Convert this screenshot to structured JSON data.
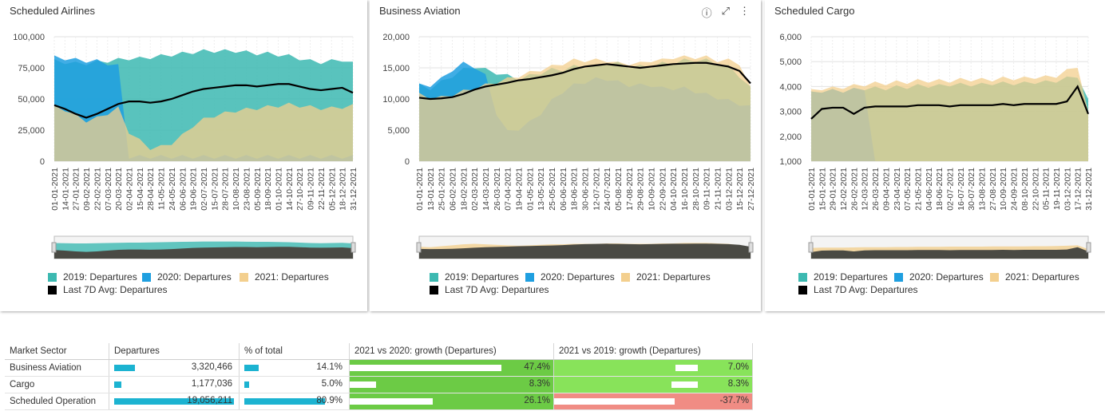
{
  "panels": [
    {
      "title": "Scheduled Airlines"
    },
    {
      "title": "Business Aviation"
    },
    {
      "title": "Scheduled Cargo"
    }
  ],
  "toolbar": {
    "info_icon": "info-icon",
    "expand_icon": "expand-icon",
    "menu_icon": "kebab-menu-icon"
  },
  "legend": {
    "y2019": "2019: Departures",
    "y2020": "2020: Departures",
    "y2021": "2021: Departures",
    "avg": "Last 7D Avg: Departures"
  },
  "colors": {
    "y2019": "#3cb9b1",
    "y2020": "#1f9fe0",
    "y2021": "#f3cf8e",
    "avg": "#000000",
    "bar": "#1cb3d1",
    "green_light": "#88e35a",
    "green_dark": "#6ccb45",
    "red": "#f08c84"
  },
  "chart_data": [
    {
      "type": "area",
      "title": "Scheduled Airlines",
      "ylim": [
        0,
        100000
      ],
      "y_ticks": [
        "0",
        "25,000",
        "50,000",
        "75,000",
        "100,000"
      ],
      "x_ticks": [
        "01-01-2021",
        "14-01-2021",
        "27-01-2021",
        "09-02-2021",
        "22-02-2021",
        "07-03-2021",
        "20-03-2021",
        "02-04-2021",
        "15-04-2021",
        "28-04-2021",
        "11-05-2021",
        "24-05-2021",
        "06-06-2021",
        "19-06-2021",
        "02-07-2021",
        "15-07-2021",
        "28-07-2021",
        "10-08-2021",
        "23-08-2021",
        "05-09-2021",
        "18-09-2021",
        "01-10-2021",
        "14-10-2021",
        "27-10-2021",
        "09-11-2021",
        "22-11-2021",
        "05-12-2021",
        "18-12-2021",
        "31-12-2021"
      ],
      "series": [
        {
          "name": "2019: Departures",
          "values": [
            82000,
            81000,
            80000,
            80000,
            81000,
            82000,
            83000,
            84000,
            84000,
            85000,
            86000,
            87000,
            88000,
            89000,
            90000,
            90000,
            90000,
            90000,
            89000,
            88000,
            88000,
            87000,
            86000,
            84000,
            82000,
            81000,
            82000,
            83000,
            80000
          ]
        },
        {
          "name": "2020: Departures",
          "values": [
            85000,
            84000,
            83000,
            82000,
            82000,
            80000,
            78000,
            5000,
            5000,
            5000,
            5000,
            5000,
            5000,
            5000,
            5000,
            5000,
            5000,
            5000,
            5000,
            5000,
            5000,
            5000,
            5000,
            5000,
            5000,
            5000,
            5000,
            5000,
            5000
          ]
        },
        {
          "name": "2021: Departures",
          "values": [
            45000,
            43000,
            38000,
            34000,
            36000,
            40000,
            44000,
            25000,
            18000,
            12000,
            13000,
            16000,
            22000,
            30000,
            35000,
            38000,
            40000,
            42000,
            43000,
            44000,
            45000,
            46000,
            47000,
            46000,
            45000,
            44000,
            44000,
            45000,
            46000
          ]
        },
        {
          "name": "Last 7D Avg: Departures",
          "values": [
            45000,
            42000,
            38000,
            35000,
            38000,
            42000,
            46000,
            48000,
            48000,
            47000,
            48000,
            50000,
            53000,
            56000,
            58000,
            59000,
            60000,
            61000,
            61000,
            60000,
            61000,
            62000,
            62000,
            60000,
            58000,
            57000,
            58000,
            59000,
            55000
          ]
        }
      ]
    },
    {
      "type": "area",
      "title": "Business Aviation",
      "ylim": [
        0,
        20000
      ],
      "y_ticks": [
        "0",
        "5,000",
        "10,000",
        "15,000",
        "20,000"
      ],
      "x_ticks": [
        "01-01-2021",
        "13-01-2021",
        "25-01-2021",
        "06-02-2021",
        "18-02-2021",
        "02-03-2021",
        "14-03-2021",
        "26-03-2021",
        "07-04-2021",
        "19-04-2021",
        "01-05-2021",
        "13-05-2021",
        "25-05-2021",
        "06-06-2021",
        "18-06-2021",
        "30-06-2021",
        "12-07-2021",
        "24-07-2021",
        "05-08-2021",
        "17-08-2021",
        "29-08-2021",
        "10-09-2021",
        "22-09-2021",
        "04-10-2021",
        "16-10-2021",
        "28-10-2021",
        "09-11-2021",
        "21-11-2021",
        "03-12-2021",
        "15-12-2021",
        "27-12-2021"
      ],
      "series": [
        {
          "name": "2019: Departures",
          "values": [
            12500,
            12000,
            13000,
            14000,
            15000,
            15500,
            15000,
            14500,
            14000,
            13500,
            14000,
            14500,
            15000,
            15000,
            15500,
            15500,
            15500,
            16000,
            16000,
            15500,
            15500,
            15500,
            16000,
            16000,
            16500,
            16500,
            16500,
            16000,
            15500,
            14000,
            12000
          ]
        },
        {
          "name": "2020: Departures",
          "values": [
            12500,
            12500,
            13500,
            15000,
            16000,
            15500,
            14000,
            8000,
            5000,
            5500,
            6500,
            8000,
            10000,
            11500,
            12500,
            13000,
            13500,
            13500,
            13000,
            12500,
            12500,
            12500,
            12000,
            12000,
            12000,
            11500,
            11000,
            10500,
            10000,
            9500,
            9000
          ]
        },
        {
          "name": "2021: Departures",
          "values": [
            11000,
            10500,
            10500,
            11000,
            11500,
            12000,
            12500,
            13000,
            13500,
            14000,
            14500,
            15000,
            15500,
            16000,
            16500,
            16500,
            16500,
            16500,
            16000,
            16000,
            16000,
            16500,
            16500,
            17000,
            17000,
            17000,
            17000,
            16500,
            16500,
            16000,
            12000
          ]
        },
        {
          "name": "Last 7D Avg: Departures",
          "values": [
            10200,
            10000,
            10100,
            10300,
            10800,
            11500,
            12000,
            12300,
            12600,
            13000,
            13200,
            13500,
            13800,
            14200,
            14800,
            15200,
            15400,
            15600,
            15400,
            15200,
            15000,
            15200,
            15400,
            15600,
            15700,
            15800,
            15800,
            15500,
            15200,
            14500,
            12500
          ]
        }
      ]
    },
    {
      "type": "area",
      "title": "Scheduled Cargo",
      "ylim": [
        1000,
        6000
      ],
      "y_ticks": [
        "1,000",
        "2,000",
        "3,000",
        "4,000",
        "5,000",
        "6,000"
      ],
      "x_ticks": [
        "01-01-2021",
        "15-01-2021",
        "29-01-2021",
        "12-02-2021",
        "26-02-2021",
        "12-03-2021",
        "26-03-2021",
        "09-04-2021",
        "23-04-2021",
        "07-05-2021",
        "21-05-2021",
        "04-06-2021",
        "18-06-2021",
        "02-07-2021",
        "16-07-2021",
        "30-07-2021",
        "13-08-2021",
        "27-08-2021",
        "10-09-2021",
        "24-09-2021",
        "08-10-2021",
        "22-10-2021",
        "05-11-2021",
        "19-11-2021",
        "03-12-2021",
        "17-12-2021",
        "31-12-2021"
      ],
      "series": [
        {
          "name": "2019: Departures",
          "values": [
            3800,
            3900,
            3900,
            3900,
            3950,
            4000,
            4000,
            4000,
            4050,
            4050,
            4100,
            4100,
            4100,
            4150,
            4150,
            4150,
            4150,
            4200,
            4200,
            4200,
            4200,
            4250,
            4250,
            4300,
            4400,
            4500,
            3500
          ]
        },
        {
          "name": "2020: Departures",
          "values": [
            3800,
            3900,
            3900,
            3900,
            3950,
            4000,
            1000,
            1000,
            1000,
            1000,
            1000,
            1000,
            1000,
            1000,
            1000,
            1000,
            1000,
            1000,
            1000,
            1000,
            1000,
            1000,
            1000,
            1000,
            1000,
            1000,
            1000
          ]
        },
        {
          "name": "2021: Departures",
          "values": [
            3900,
            4000,
            4000,
            4050,
            4100,
            4150,
            4200,
            4200,
            4250,
            4250,
            4300,
            4300,
            4300,
            4300,
            4350,
            4350,
            4350,
            4350,
            4400,
            4400,
            4400,
            4450,
            4450,
            4500,
            4700,
            4900,
            3000
          ]
        },
        {
          "name": "Last 7D Avg: Departures",
          "values": [
            2700,
            3100,
            3150,
            3150,
            2900,
            3150,
            3200,
            3200,
            3200,
            3200,
            3250,
            3250,
            3250,
            3200,
            3250,
            3250,
            3250,
            3250,
            3300,
            3250,
            3300,
            3300,
            3300,
            3300,
            3400,
            4000,
            2900
          ]
        }
      ]
    }
  ],
  "table": {
    "headers": [
      "Market Sector",
      "Departures",
      "% of total",
      "2021 vs 2020: growth (Departures)",
      "2021 vs 2019: growth (Departures)"
    ],
    "rows": [
      {
        "sector": "Business Aviation",
        "departures": "3,320,466",
        "dep_frac": 0.174,
        "pct": "14.1%",
        "pct_frac": 0.141,
        "g2020": "47.4%",
        "g2020_frac": 0.474,
        "g2019": "7.0%",
        "g2019_frac": 0.07,
        "g2019_neg": false
      },
      {
        "sector": "Cargo",
        "departures": "1,177,036",
        "dep_frac": 0.062,
        "pct": "5.0%",
        "pct_frac": 0.05,
        "g2020": "8.3%",
        "g2020_frac": 0.083,
        "g2019": "8.3%",
        "g2019_frac": 0.083,
        "g2019_neg": false
      },
      {
        "sector": "Scheduled Operation",
        "departures": "19,056,211",
        "dep_frac": 1.0,
        "pct": "80.9%",
        "pct_frac": 0.809,
        "g2020": "26.1%",
        "g2020_frac": 0.261,
        "g2019": "-37.7%",
        "g2019_frac": 0.377,
        "g2019_neg": true
      }
    ]
  }
}
